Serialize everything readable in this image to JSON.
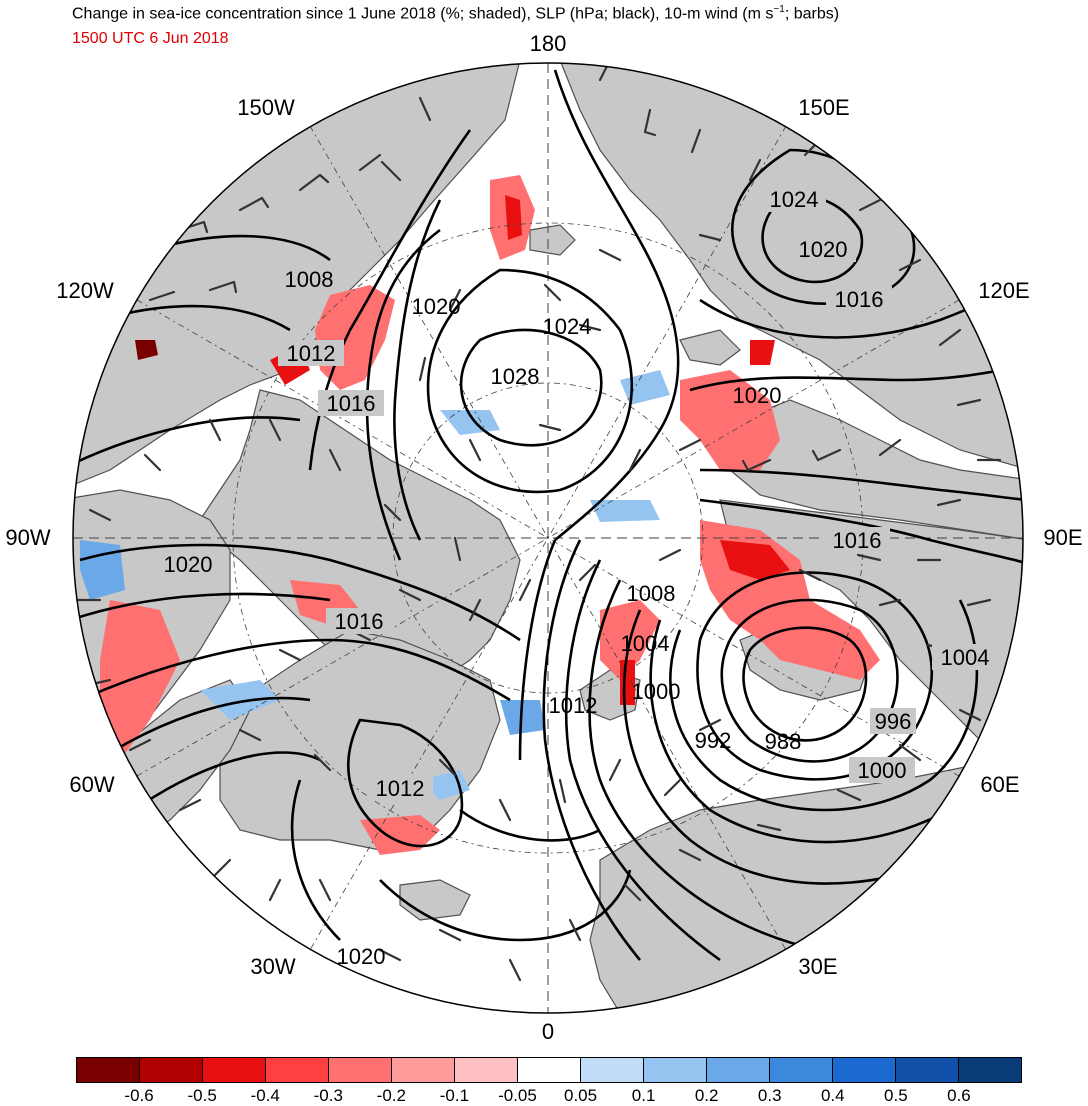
{
  "header": {
    "title_main": "Change in sea-ice concentration since 1 June 2018 (%; shaded), SLP (hPa; black), 10-m wind (m s",
    "title_sup": "−1",
    "title_end": "; barbs)",
    "subtitle": "1500 UTC 6 Jun 2018"
  },
  "map": {
    "projection": "north-polar-stereographic",
    "colors": {
      "land": "#c8c8c8",
      "ocean": "#ffffff",
      "coast": "#505050",
      "isobar": "#000000",
      "barb": "#333333"
    },
    "longitude_labels": {
      "lon_180": "180",
      "lon_150e": "150E",
      "lon_120e": "120E",
      "lon_90e": "90E",
      "lon_60e": "60E",
      "lon_30e": "30E",
      "lon_0": "0",
      "lon_30w": "30W",
      "lon_60w": "60W",
      "lon_90w": "90W",
      "lon_120w": "120W",
      "lon_150w": "150W"
    },
    "isobar_labels": [
      "1024",
      "1020",
      "1016",
      "1008",
      "1020",
      "1024",
      "1028",
      "1012",
      "1016",
      "1020",
      "1020",
      "1016",
      "1016",
      "1008",
      "1004",
      "1000",
      "1004",
      "992",
      "988",
      "996",
      "1000",
      "1012",
      "1012",
      "1020"
    ]
  },
  "colorbar": {
    "colors": [
      "#7a0000",
      "#b00000",
      "#e81010",
      "#ff4040",
      "#ff7070",
      "#ff9c9c",
      "#ffc0c4",
      "#ffffff",
      "#c2ddf8",
      "#96c4f0",
      "#6ba8e8",
      "#3c88dc",
      "#1a6ad2",
      "#1050a8",
      "#083c78"
    ],
    "tick_labels": [
      "-0.6",
      "-0.5",
      "-0.4",
      "-0.3",
      "-0.2",
      "-0.1",
      "-0.05",
      "0.05",
      "0.1",
      "0.2",
      "0.3",
      "0.4",
      "0.5",
      "0.6"
    ]
  }
}
